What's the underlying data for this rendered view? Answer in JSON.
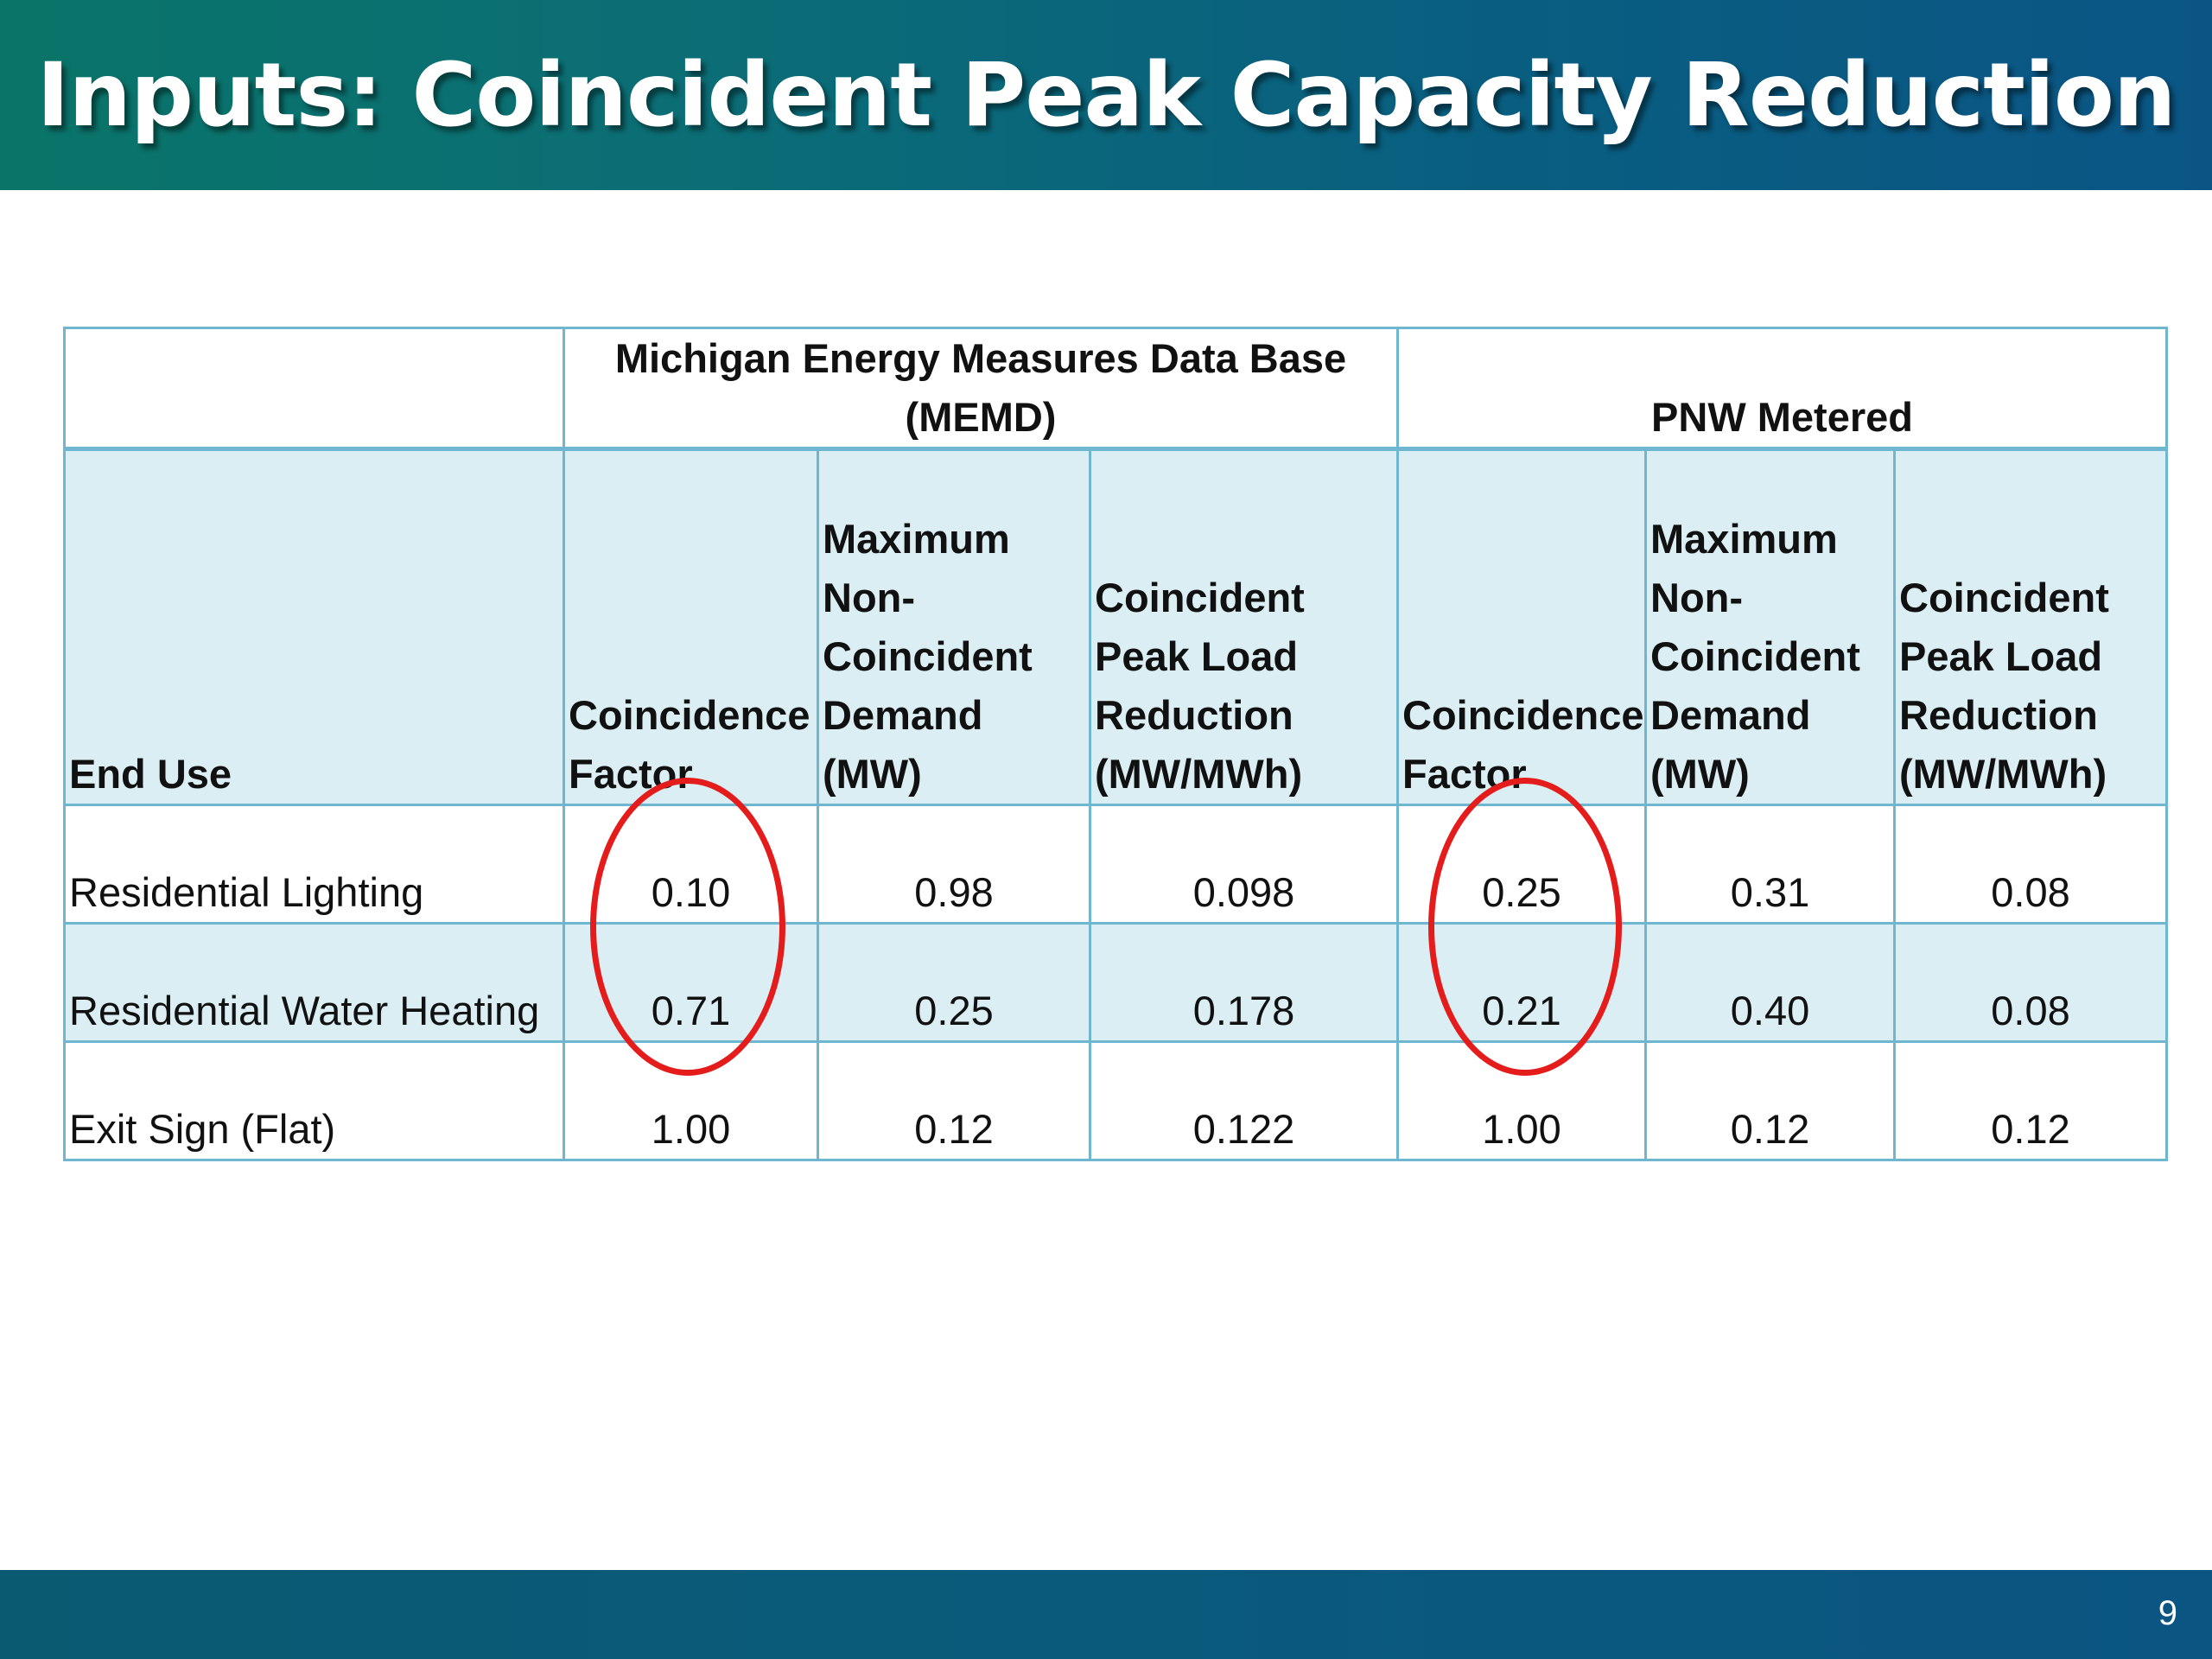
{
  "slide": {
    "title": "Inputs: Coincident Peak Capacity Reduction",
    "page_number": "9"
  },
  "table": {
    "group_headers": [
      "",
      "Michigan Energy Measures Data Base (MEMD)",
      "PNW Metered"
    ],
    "columns": [
      "End Use",
      "Coincidence Factor",
      "Maximum Non-Coincident Demand (MW)",
      "Coincident Peak Load Reduction (MW/MWh)",
      "Coincidence Factor",
      "Maximum Non-Coincident Demand (MW)",
      "Coincident Peak Load Reduction (MW/MWh)"
    ],
    "rows": [
      [
        "Residential Lighting",
        "0.10",
        "0.98",
        "0.098",
        "0.25",
        "0.31",
        "0.08"
      ],
      [
        "Residential Water Heating",
        "0.71",
        "0.25",
        "0.178",
        "0.21",
        "0.40",
        "0.08"
      ],
      [
        "Exit Sign (Flat)",
        "1.00",
        "0.12",
        "0.122",
        "1.00",
        "0.12",
        "0.12"
      ]
    ]
  },
  "colors": {
    "title_bar": "#0a6a78",
    "table_border": "#6fb6d0",
    "header_fill": "#daeef3",
    "highlight_circle": "#e41c1c"
  }
}
